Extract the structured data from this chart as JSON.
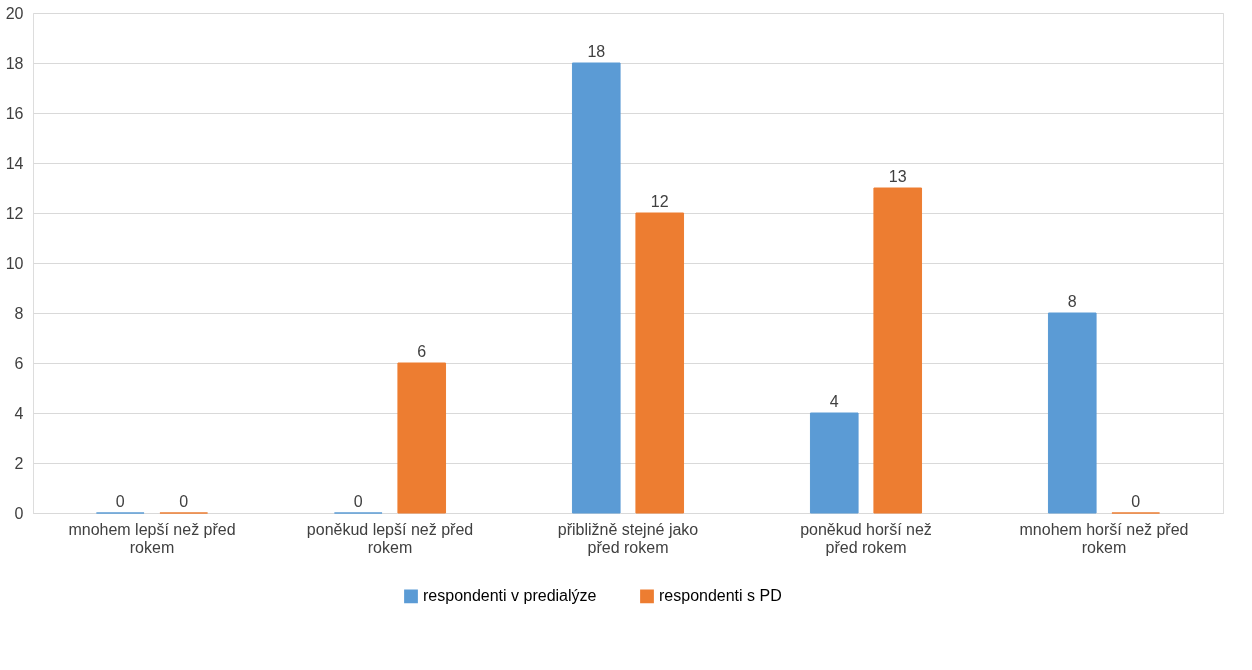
{
  "chart_data": {
    "type": "bar",
    "categories": [
      "mnohem lepší než před rokem",
      "poněkud lepší než před rokem",
      "přibližně stejné jako před rokem",
      "poněkud horší  než před rokem",
      "mnohem horší  než před rokem"
    ],
    "series": [
      {
        "name": "respondenti v predialýze",
        "color": "#5b9bd5",
        "values": [
          0,
          0,
          18,
          4,
          8
        ]
      },
      {
        "name": "respondenti s PD",
        "color": "#ed7d31",
        "values": [
          0,
          6,
          12,
          13,
          0
        ]
      }
    ],
    "ylim": [
      0,
      20
    ],
    "yticks": [
      0,
      2,
      4,
      6,
      8,
      10,
      12,
      14,
      16,
      18,
      20
    ],
    "grid": "y",
    "legend": "bottom",
    "data_labels": true
  }
}
